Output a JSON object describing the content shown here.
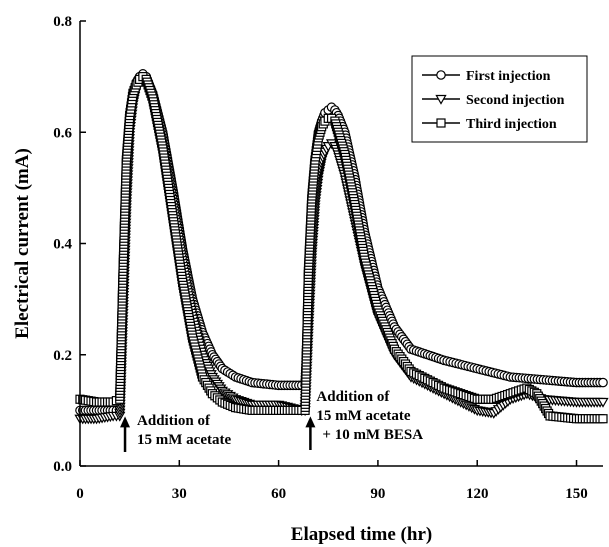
{
  "chart_data": {
    "type": "line",
    "xlabel": "Elapsed time (hr)",
    "ylabel": "Electrical current (mA)",
    "xlim": [
      0,
      158
    ],
    "ylim": [
      0,
      0.8
    ],
    "xticks": [
      0,
      30,
      60,
      90,
      120,
      150
    ],
    "yticks": [
      0.0,
      0.2,
      0.4,
      0.6,
      0.8
    ],
    "ytick_labels": [
      "0.0",
      "0.2",
      "0.4",
      "0.6",
      "0.8"
    ],
    "legend_position": "top-right",
    "grid": false,
    "series": [
      {
        "name": "First injection",
        "marker": "circle",
        "x": [
          0,
          5,
          10,
          12,
          13,
          14,
          15,
          16,
          17,
          18,
          19,
          20,
          22,
          25,
          28,
          31,
          34,
          37,
          40,
          43,
          47,
          52,
          60,
          67,
          68,
          69,
          70,
          71,
          72,
          73,
          74,
          75,
          76,
          77,
          78,
          80,
          83,
          86,
          90,
          95,
          100,
          110,
          120,
          130,
          140,
          150,
          158
        ],
        "y": [
          0.1,
          0.1,
          0.1,
          0.1,
          0.3,
          0.5,
          0.62,
          0.67,
          0.69,
          0.7,
          0.705,
          0.7,
          0.67,
          0.6,
          0.5,
          0.39,
          0.3,
          0.24,
          0.2,
          0.175,
          0.16,
          0.15,
          0.145,
          0.145,
          0.145,
          0.3,
          0.45,
          0.55,
          0.6,
          0.62,
          0.635,
          0.64,
          0.645,
          0.64,
          0.63,
          0.6,
          0.52,
          0.42,
          0.32,
          0.25,
          0.21,
          0.19,
          0.175,
          0.16,
          0.155,
          0.15,
          0.15
        ]
      },
      {
        "name": "Second injection",
        "marker": "triangle-down",
        "x": [
          0,
          5,
          10,
          12,
          13,
          14,
          15,
          16,
          17,
          18,
          19,
          20,
          22,
          25,
          28,
          31,
          34,
          37,
          40,
          43,
          47,
          52,
          60,
          67,
          68,
          69,
          70,
          71,
          72,
          73,
          74,
          75,
          76,
          77,
          78,
          80,
          83,
          86,
          90,
          95,
          100,
          110,
          120,
          125,
          130,
          135,
          140,
          150,
          158
        ],
        "y": [
          0.085,
          0.085,
          0.09,
          0.09,
          0.28,
          0.47,
          0.6,
          0.65,
          0.68,
          0.69,
          0.695,
          0.69,
          0.66,
          0.58,
          0.48,
          0.37,
          0.27,
          0.2,
          0.16,
          0.135,
          0.12,
          0.11,
          0.11,
          0.1,
          0.1,
          0.25,
          0.38,
          0.47,
          0.52,
          0.55,
          0.565,
          0.575,
          0.58,
          0.575,
          0.56,
          0.52,
          0.44,
          0.36,
          0.27,
          0.2,
          0.16,
          0.13,
          0.1,
          0.095,
          0.12,
          0.13,
          0.12,
          0.115,
          0.115
        ]
      },
      {
        "name": "Third injection",
        "marker": "square",
        "x": [
          0,
          5,
          10,
          12,
          13,
          14,
          15,
          16,
          17,
          18,
          19,
          20,
          22,
          25,
          28,
          31,
          34,
          37,
          40,
          43,
          47,
          52,
          60,
          67,
          68,
          69,
          70,
          71,
          72,
          73,
          74,
          75,
          76,
          77,
          78,
          80,
          83,
          86,
          90,
          95,
          100,
          110,
          120,
          125,
          130,
          135,
          138,
          142,
          150,
          158
        ],
        "y": [
          0.12,
          0.115,
          0.115,
          0.12,
          0.35,
          0.55,
          0.63,
          0.67,
          0.685,
          0.695,
          0.7,
          0.695,
          0.66,
          0.57,
          0.45,
          0.33,
          0.23,
          0.16,
          0.13,
          0.115,
          0.105,
          0.1,
          0.1,
          0.1,
          0.1,
          0.35,
          0.48,
          0.55,
          0.59,
          0.61,
          0.62,
          0.625,
          0.625,
          0.62,
          0.6,
          0.56,
          0.47,
          0.37,
          0.28,
          0.21,
          0.17,
          0.14,
          0.12,
          0.12,
          0.13,
          0.14,
          0.13,
          0.09,
          0.085,
          0.085
        ]
      }
    ],
    "annotations": [
      {
        "lines": [
          "Addition of",
          "15 mM acetate"
        ],
        "x": 13,
        "y": 0.1
      },
      {
        "lines": [
          "Addition of",
          "15 mM acetate",
          "+ 10 mM BESA"
        ],
        "x": 69,
        "y": 0.1
      }
    ],
    "colors": {
      "line": "#000000",
      "marker_fill": "#ffffff"
    }
  }
}
